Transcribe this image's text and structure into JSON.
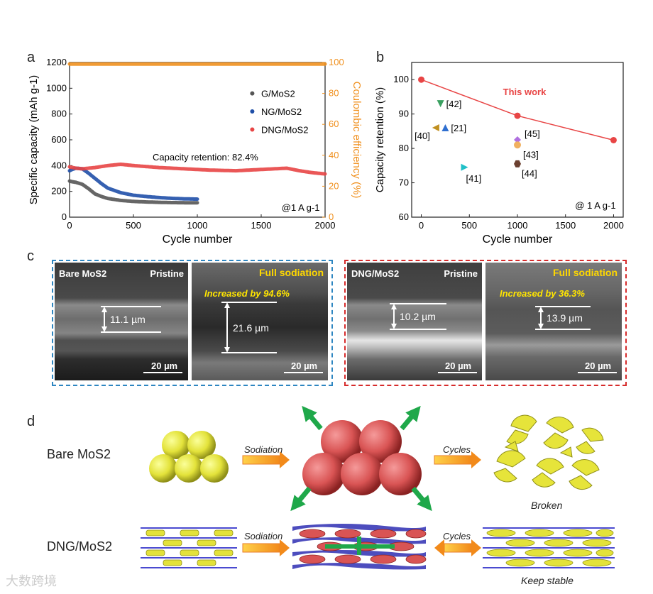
{
  "panel_labels": {
    "a": "a",
    "b": "b",
    "c": "c",
    "d": "d"
  },
  "chart_data": [
    {
      "type": "scatter",
      "panel": "a",
      "xlabel": "Cycle number",
      "ylabel": "Specific capacity (mAh g-1)",
      "ylabel2": "Coulombic efficiency (%)",
      "xlim": [
        0,
        2000
      ],
      "ylim": [
        0,
        1200
      ],
      "y2lim": [
        0,
        100
      ],
      "x_ticks": [
        0,
        500,
        1000,
        1500,
        2000
      ],
      "y_ticks": [
        0,
        200,
        400,
        600,
        800,
        1000,
        1200
      ],
      "y2_ticks": [
        0,
        20,
        40,
        60,
        80,
        100
      ],
      "annotation": "Capacity retention: 82.4%",
      "rate_label": "@1 A g-1",
      "legend": [
        "G/MoS2",
        "NG/MoS2",
        "DNG/MoS2"
      ],
      "series": [
        {
          "name": "G/MoS2",
          "color": "#555555",
          "x": [
            0,
            20,
            50,
            100,
            150,
            200,
            250,
            300,
            400,
            500,
            600,
            700,
            800,
            900,
            1000
          ],
          "y": [
            280,
            275,
            270,
            255,
            220,
            180,
            160,
            145,
            130,
            122,
            118,
            115,
            113,
            112,
            112
          ]
        },
        {
          "name": "NG/MoS2",
          "color": "#1f4fa8",
          "x": [
            0,
            20,
            50,
            100,
            150,
            200,
            250,
            300,
            400,
            500,
            600,
            700,
            800,
            900,
            1000
          ],
          "y": [
            360,
            370,
            380,
            375,
            340,
            300,
            260,
            225,
            190,
            170,
            160,
            152,
            146,
            142,
            140
          ]
        },
        {
          "name": "DNG/MoS2",
          "color": "#e84545",
          "x": [
            0,
            50,
            100,
            200,
            300,
            400,
            500,
            700,
            900,
            1100,
            1300,
            1500,
            1700,
            1800,
            1900,
            2000
          ],
          "y": [
            390,
            380,
            375,
            385,
            400,
            410,
            400,
            385,
            375,
            365,
            360,
            370,
            380,
            360,
            345,
            335
          ]
        },
        {
          "name": "Coulombic efficiency",
          "color": "#f0901e",
          "x": [
            0,
            250,
            500,
            750,
            1000,
            1250,
            1500,
            1750,
            2000
          ],
          "y": [
            99,
            99,
            99,
            99,
            99,
            99,
            99,
            99,
            99
          ]
        }
      ]
    },
    {
      "type": "scatter",
      "panel": "b",
      "xlabel": "Cycle number",
      "ylabel": "Capacity retention (%)",
      "xlim": [
        -100,
        2100
      ],
      "ylim": [
        60,
        105
      ],
      "x_ticks": [
        0,
        500,
        1000,
        1500,
        2000
      ],
      "y_ticks": [
        60,
        70,
        80,
        90,
        100
      ],
      "rate_label": "@ 1 A g-1",
      "this_work_label": "This work",
      "this_work": {
        "x": [
          0,
          1000,
          2000
        ],
        "y": [
          100,
          89.5,
          82.4
        ],
        "color": "#e84545"
      },
      "refs": [
        {
          "label": "[42]",
          "x": 200,
          "y": 93,
          "color": "#3aa060",
          "marker": "tri-down"
        },
        {
          "label": "[21]",
          "x": 250,
          "y": 86,
          "color": "#2f6fd0",
          "marker": "tri-up"
        },
        {
          "label": "[40]",
          "x": 150,
          "y": 86,
          "color": "#c09020",
          "marker": "tri-left"
        },
        {
          "label": "[41]",
          "x": 450,
          "y": 74.5,
          "color": "#20c0c8",
          "marker": "tri-right"
        },
        {
          "label": "[45]",
          "x": 1000,
          "y": 82.5,
          "color": "#b070e0",
          "marker": "diamond"
        },
        {
          "label": "[43]",
          "x": 1000,
          "y": 81,
          "color": "#f0b060",
          "marker": "circle"
        },
        {
          "label": "[44]",
          "x": 1000,
          "y": 75.5,
          "color": "#6b4030",
          "marker": "hexagon"
        }
      ]
    }
  ],
  "sem": {
    "bare": {
      "title": "Bare MoS2",
      "pristine": "Pristine",
      "full": "Full sodiation",
      "increase": "Increased by 94.6%",
      "t1": "11.1 µm",
      "t2": "21.6 µm",
      "scale": "20 µm"
    },
    "dng": {
      "title": "DNG/MoS2",
      "pristine": "Pristine",
      "full": "Full sodiation",
      "increase": "Increased by 36.3%",
      "t1": "10.2 µm",
      "t2": "13.9 µm",
      "scale": "20 µm"
    }
  },
  "schematic": {
    "bare_label": "Bare MoS2",
    "dng_label": "DNG/MoS2",
    "sodiation": "Sodiation",
    "cycles": "Cycles",
    "broken": "Broken",
    "keep_stable": "Keep stable"
  },
  "watermark": "大数跨境"
}
